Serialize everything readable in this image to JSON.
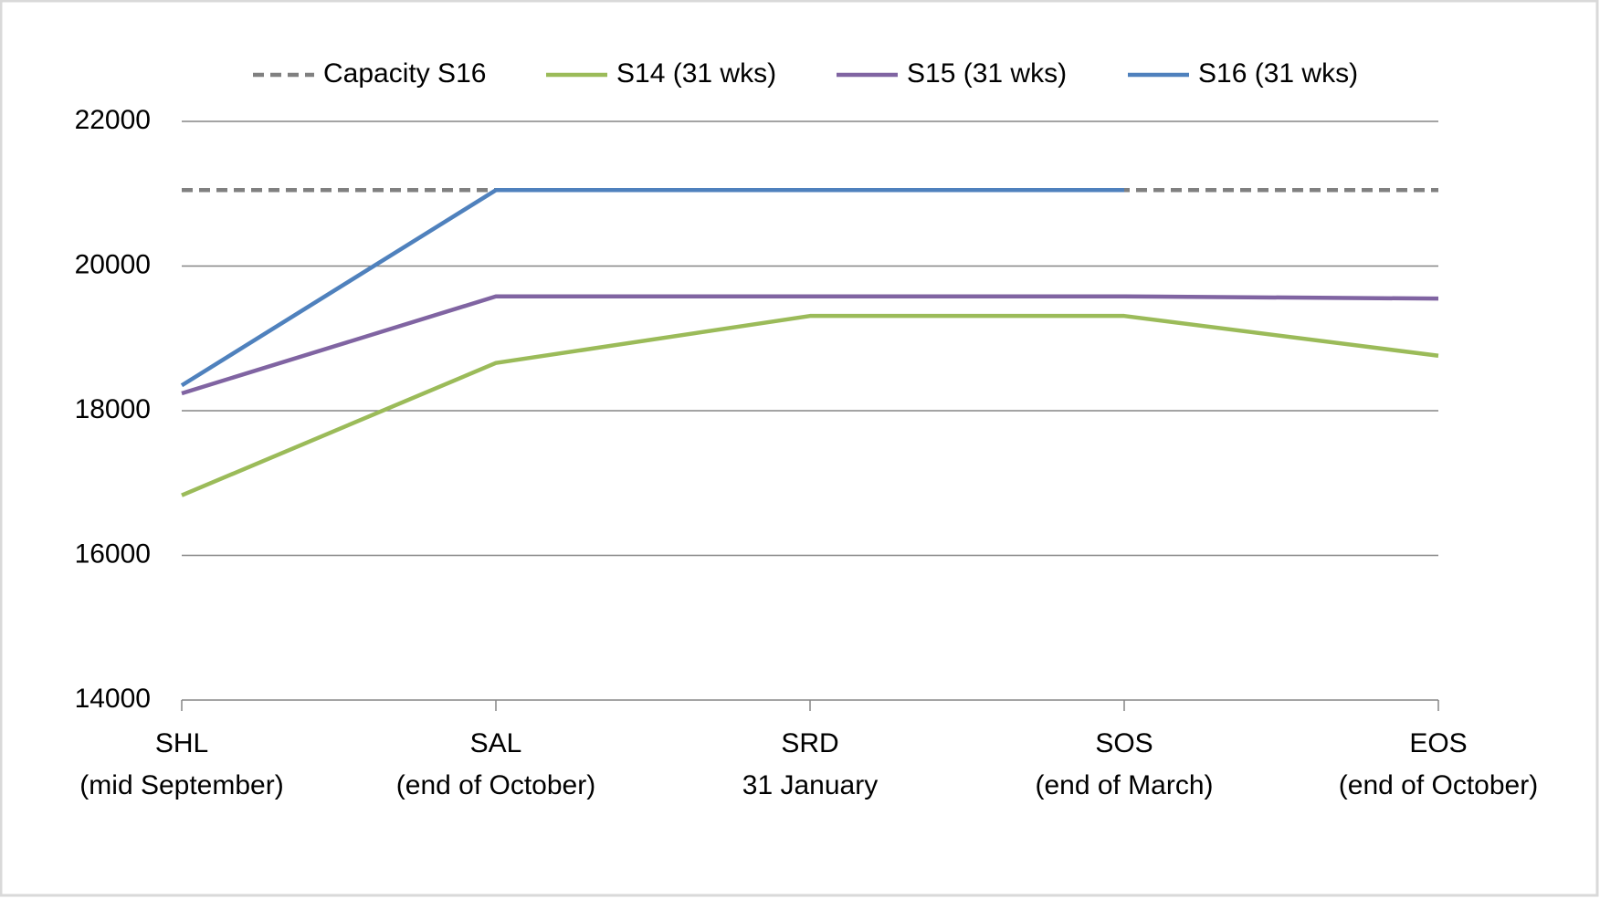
{
  "chart_data": {
    "type": "line",
    "categories": [
      [
        "SHL",
        "(mid September)"
      ],
      [
        "SAL",
        "(end of October)"
      ],
      [
        "SRD",
        "31 January"
      ],
      [
        "SOS",
        "(end of March)"
      ],
      [
        "EOS",
        "(end of October)"
      ]
    ],
    "series": [
      {
        "name": "Capacity S16",
        "color": "#808080",
        "dashed": true,
        "values": [
          21050,
          21050,
          21050,
          21050,
          21050
        ]
      },
      {
        "name": "S14 (31 wks)",
        "color": "#9bbb59",
        "values": [
          16830,
          18660,
          19310,
          19310,
          18760
        ]
      },
      {
        "name": "S15 (31 wks)",
        "color": "#8064a2",
        "values": [
          18240,
          19580,
          19580,
          19580,
          19550
        ]
      },
      {
        "name": "S16 (31 wks)",
        "color": "#4f81bd",
        "values": [
          18350,
          21050,
          21050,
          21050,
          null
        ]
      }
    ],
    "ylim": [
      14000,
      22000
    ],
    "yticks": [
      14000,
      16000,
      18000,
      20000,
      22000
    ],
    "grid": true,
    "legend": "top"
  }
}
